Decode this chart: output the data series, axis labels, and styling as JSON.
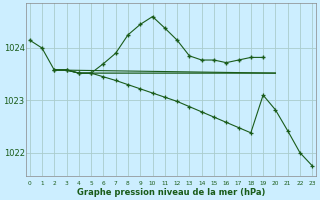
{
  "xlabel": "Graphe pression niveau de la mer (hPa)",
  "bg_color": "#cceeff",
  "grid_color_major": "#aacccc",
  "grid_color_minor": "#bbdddd",
  "line_color": "#1a5c1a",
  "ylim": [
    1021.55,
    1024.85
  ],
  "yticks": [
    1022,
    1023,
    1024
  ],
  "xlim": [
    -0.3,
    23.3
  ],
  "series1_x": [
    0,
    1,
    2,
    3,
    4,
    5,
    6,
    7,
    8,
    9,
    10,
    11,
    12,
    13,
    14,
    15,
    16,
    17,
    18,
    19
  ],
  "series1_y": [
    1024.15,
    1024.0,
    1023.58,
    1023.58,
    1023.52,
    1023.52,
    1023.7,
    1023.9,
    1024.25,
    1024.45,
    1024.6,
    1024.38,
    1024.15,
    1023.85,
    1023.77,
    1023.77,
    1023.72,
    1023.77,
    1023.82,
    1023.82
  ],
  "series2_x": [
    2,
    3,
    4,
    5,
    6,
    7,
    8,
    9,
    10,
    11,
    12,
    13,
    14,
    15,
    16,
    17,
    18,
    19,
    20
  ],
  "series2_y": [
    1023.58,
    1023.58,
    1023.52,
    1023.52,
    1023.52,
    1023.52,
    1023.52,
    1023.52,
    1023.52,
    1023.52,
    1023.52,
    1023.52,
    1023.52,
    1023.52,
    1023.52,
    1023.52,
    1023.52,
    1023.52,
    1023.52
  ],
  "series3_x": [
    2,
    3,
    4,
    5,
    6,
    7,
    8,
    9,
    10,
    11,
    12,
    13,
    14,
    15,
    16,
    17,
    18,
    19,
    20,
    21,
    22,
    23
  ],
  "series3_y": [
    1023.58,
    1023.58,
    1023.52,
    1023.52,
    1023.45,
    1023.38,
    1023.3,
    1023.22,
    1023.14,
    1023.06,
    1022.98,
    1022.88,
    1022.78,
    1022.68,
    1022.58,
    1022.48,
    1022.38,
    1023.1,
    1022.82,
    1022.42,
    1022.0,
    1021.75
  ],
  "series4_x": [
    2,
    20
  ],
  "series4_y": [
    1023.58,
    1023.52
  ]
}
